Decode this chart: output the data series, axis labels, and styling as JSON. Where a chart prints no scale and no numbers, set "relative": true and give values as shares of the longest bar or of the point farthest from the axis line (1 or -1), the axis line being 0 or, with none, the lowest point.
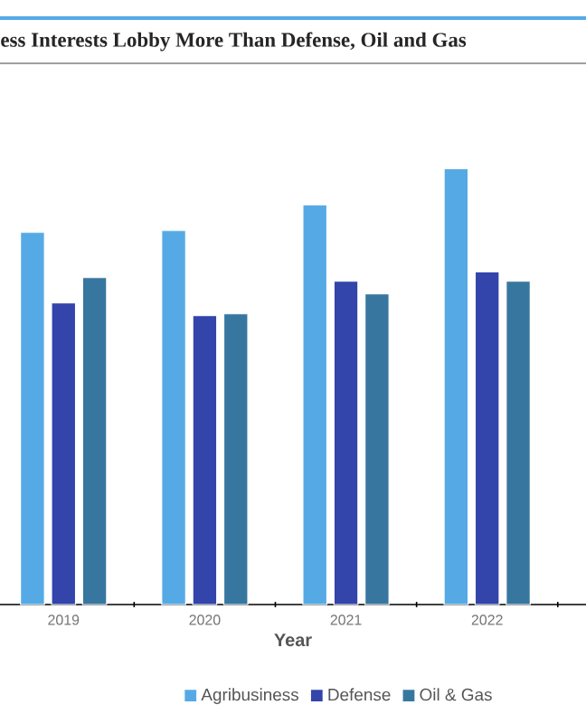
{
  "chart_data": {
    "type": "bar",
    "title": "ess Interests Lobby More Than Defense, Oil and Gas",
    "xlabel": "Year",
    "relative": true,
    "legend": "bottom",
    "categories": [
      "2019",
      "2020",
      "2021",
      "2022"
    ],
    "series": [
      {
        "name": "Agribusiness",
        "color": "#55aae6",
        "values": [
          0.854,
          0.858,
          0.917,
          1
        ]
      },
      {
        "name": "Defense",
        "color": "#3344aa",
        "values": [
          0.692,
          0.663,
          0.742,
          0.763
        ]
      },
      {
        "name": "Oil & Gas",
        "color": "#37779f",
        "values": [
          0.75,
          0.667,
          0.713,
          0.742
        ]
      }
    ]
  }
}
